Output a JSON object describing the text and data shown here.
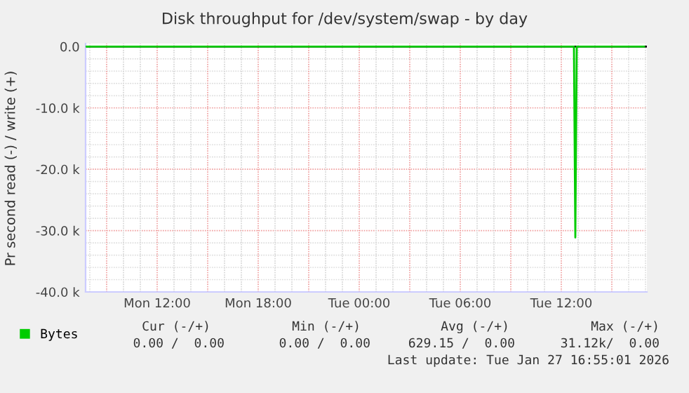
{
  "chart_data": {
    "type": "line",
    "title": "Disk throughput for /dev/system/swap - by day",
    "ylabel": "Pr second read (-) / write (+)",
    "x": [
      "2026-01-26T07:45",
      "2026-01-27T12:45",
      "2026-01-27T12:50",
      "2026-01-27T12:55",
      "2026-01-27T16:55"
    ],
    "series": [
      {
        "name": "Bytes",
        "color": "#00cc00",
        "values": [
          0,
          0,
          -31120,
          0,
          0
        ]
      }
    ],
    "xlim": [
      "2026-01-26T07:45",
      "2026-01-27T17:05"
    ],
    "xticks": [
      {
        "value": "2026-01-26T09:00",
        "label": null
      },
      {
        "value": "2026-01-26T12:00",
        "label": "Mon 12:00"
      },
      {
        "value": "2026-01-26T15:00",
        "label": null
      },
      {
        "value": "2026-01-26T18:00",
        "label": "Mon 18:00"
      },
      {
        "value": "2026-01-26T21:00",
        "label": null
      },
      {
        "value": "2026-01-27T00:00",
        "label": "Tue 00:00"
      },
      {
        "value": "2026-01-27T03:00",
        "label": null
      },
      {
        "value": "2026-01-27T06:00",
        "label": "Tue 06:00"
      },
      {
        "value": "2026-01-27T09:00",
        "label": null
      },
      {
        "value": "2026-01-27T12:00",
        "label": "Tue 12:00"
      },
      {
        "value": "2026-01-27T15:00",
        "label": null
      }
    ],
    "ylim": [
      -40000,
      500
    ],
    "yticks": [
      {
        "value": -40000,
        "label": "-40.0 k"
      },
      {
        "value": -30000,
        "label": "-30.0 k"
      },
      {
        "value": -20000,
        "label": "-20.0 k"
      },
      {
        "value": -10000,
        "label": "-10.0 k"
      },
      {
        "value": 0,
        "label": "0.0"
      }
    ],
    "ref_lines": [
      {
        "axis": "y",
        "value": 0,
        "color": "#000000"
      }
    ],
    "grid": true,
    "legend": "bottom left",
    "marker": "none",
    "line_style": "solid",
    "annotations": [
      "Cur (-/+)",
      "Min (-/+)",
      "Avg (-/+)",
      "Max (-/+)",
      "0.00 /  0.00",
      "0.00 /  0.00",
      "629.15 /  0.00",
      "31.12k/  0.00",
      "Last update: Tue Jan 27 16:55:01 2026"
    ]
  }
}
